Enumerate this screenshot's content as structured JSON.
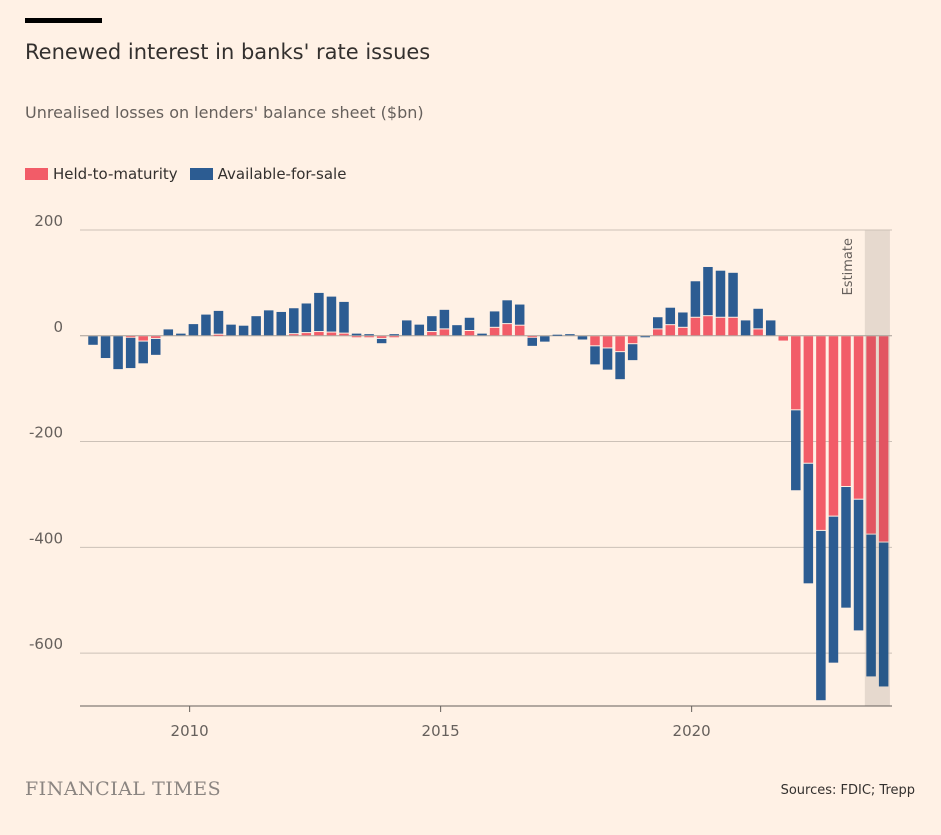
{
  "header": {
    "title": "Renewed interest in banks' rate issues",
    "subtitle": "Unrealised losses on lenders' balance sheet ($bn)"
  },
  "footer": {
    "brand": "FINANCIAL TIMES",
    "source": "Sources: FDIC; Trepp"
  },
  "chart_data": {
    "type": "bar",
    "stacked": true,
    "title": "Renewed interest in banks' rate issues",
    "subtitle": "Unrealised losses on lenders' balance sheet ($bn)",
    "xlabel": "",
    "ylabel": "",
    "ylim": [
      -700,
      200
    ],
    "yticks": [
      200,
      0,
      -200,
      -400,
      -600
    ],
    "xticks": [
      "2010",
      "2015",
      "2020"
    ],
    "grid": true,
    "legend_position": "top-left",
    "annotation": {
      "label": "Estimate",
      "range": [
        "2023 Q3",
        "2023 Q4"
      ],
      "color": "#e6d9ce"
    },
    "categories": [
      "2008 Q1",
      "2008 Q2",
      "2008 Q3",
      "2008 Q4",
      "2009 Q1",
      "2009 Q2",
      "2009 Q3",
      "2009 Q4",
      "2010 Q1",
      "2010 Q2",
      "2010 Q3",
      "2010 Q4",
      "2011 Q1",
      "2011 Q2",
      "2011 Q3",
      "2011 Q4",
      "2012 Q1",
      "2012 Q2",
      "2012 Q3",
      "2012 Q4",
      "2013 Q1",
      "2013 Q2",
      "2013 Q3",
      "2013 Q4",
      "2014 Q1",
      "2014 Q2",
      "2014 Q3",
      "2014 Q4",
      "2015 Q1",
      "2015 Q2",
      "2015 Q3",
      "2015 Q4",
      "2016 Q1",
      "2016 Q2",
      "2016 Q3",
      "2016 Q4",
      "2017 Q1",
      "2017 Q2",
      "2017 Q3",
      "2017 Q4",
      "2018 Q1",
      "2018 Q2",
      "2018 Q3",
      "2018 Q4",
      "2019 Q1",
      "2019 Q2",
      "2019 Q3",
      "2019 Q4",
      "2020 Q1",
      "2020 Q2",
      "2020 Q3",
      "2020 Q4",
      "2021 Q1",
      "2021 Q2",
      "2021 Q3",
      "2021 Q4",
      "2022 Q1",
      "2022 Q2",
      "2022 Q3",
      "2022 Q4",
      "2023 Q1",
      "2023 Q2",
      "2023 Q3",
      "2023 Q4"
    ],
    "series": [
      {
        "name": "Held-to-maturity",
        "color": "#f25c68",
        "values": [
          0,
          0,
          0,
          -3,
          -10,
          -5,
          0,
          0,
          0,
          0,
          3,
          0,
          0,
          0,
          0,
          0,
          4,
          6,
          8,
          7,
          5,
          -3,
          -3,
          -5,
          -2,
          0,
          0,
          8,
          13,
          0,
          10,
          0,
          16,
          23,
          20,
          -3,
          0,
          0,
          0,
          0,
          -19,
          -23,
          -30,
          -15,
          0,
          13,
          21,
          16,
          35,
          38,
          35,
          35,
          0,
          13,
          0,
          -10,
          -140,
          -241,
          -368,
          -341,
          -285,
          -309,
          -375,
          -390
        ]
      },
      {
        "name": "Available-for-sale",
        "color": "#2c5c92",
        "values": [
          -18,
          -43,
          -64,
          -59,
          -43,
          -32,
          13,
          5,
          23,
          41,
          45,
          22,
          20,
          38,
          49,
          46,
          49,
          56,
          74,
          68,
          60,
          5,
          4,
          -10,
          4,
          30,
          22,
          30,
          37,
          21,
          25,
          5,
          31,
          45,
          40,
          -17,
          -12,
          3,
          4,
          -8,
          -36,
          -42,
          -53,
          -32,
          -3,
          23,
          33,
          29,
          69,
          93,
          89,
          85,
          30,
          39,
          30,
          0,
          -153,
          -228,
          -322,
          -278,
          -230,
          -249,
          -270,
          -274
        ]
      }
    ]
  }
}
